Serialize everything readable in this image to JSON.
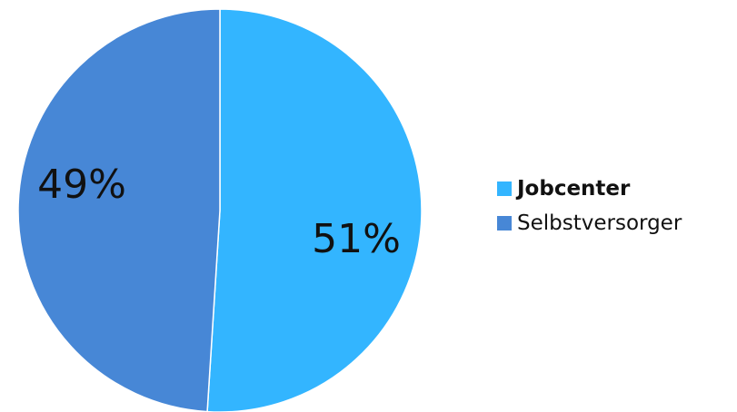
{
  "chart_data": {
    "type": "pie",
    "categories": [
      "Jobcenter",
      "Selbstversorger"
    ],
    "values": [
      51,
      49
    ],
    "labels": [
      "51%",
      "49%"
    ],
    "colors": [
      "#33b5ff",
      "#4787d6"
    ],
    "legend": {
      "position": "right",
      "items": [
        {
          "label": "Jobcenter",
          "color": "#33b5ff",
          "bold": true
        },
        {
          "label": "Selbstversorger",
          "color": "#4787d6",
          "bold": false
        }
      ]
    }
  }
}
